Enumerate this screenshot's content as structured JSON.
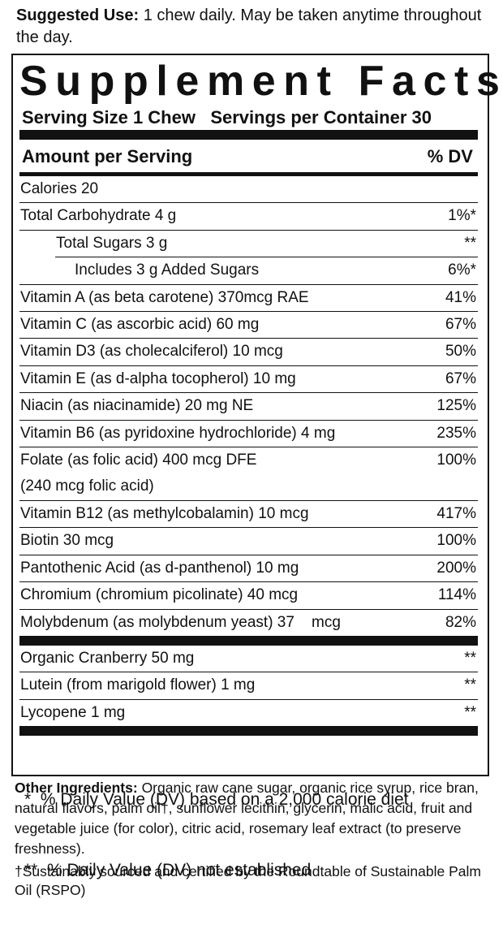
{
  "suggested_use": {
    "label": "Suggested Use:",
    "text": "1 chew daily. May be taken anytime throughout the day."
  },
  "panel": {
    "title": "Supplement Facts",
    "serving_size": "Serving Size 1 Chew",
    "servings_per_container": "Servings per Container 30",
    "header": {
      "amount": "Amount per Serving",
      "dv": "% DV"
    },
    "rows": [
      {
        "name": "Calories 20"
      },
      {
        "name": "Total Carbohydrate 4 g",
        "dv": "1%*"
      },
      {
        "name": "Total Sugars 3 g",
        "dv": "**"
      },
      {
        "name": "Includes 3 g Added Sugars",
        "dv": "6%*"
      },
      {
        "name": "Vitamin A (as beta carotene) 370mcg RAE",
        "dv": "41%"
      },
      {
        "name": "Vitamin C (as ascorbic acid) 60 mg",
        "dv": "67%"
      },
      {
        "name": "Vitamin D3 (as cholecalciferol) 10 mcg",
        "dv": "50%"
      },
      {
        "name": "Vitamin E (as d-alpha tocopherol) 10 mg",
        "dv": "67%"
      },
      {
        "name": "Niacin (as niacinamide) 20 mg NE",
        "dv": "125%"
      },
      {
        "name": "Vitamin B6 (as pyridoxine hydrochloride) 4 mg",
        "dv": "235%"
      },
      {
        "name": "Folate (as folic acid) 400 mcg DFE",
        "detail": "(240 mcg folic acid)",
        "dv": "100%"
      },
      {
        "name": "Vitamin B12 (as methylcobalamin) 10 mcg",
        "dv": "417%"
      },
      {
        "name": "Biotin 30 mcg",
        "dv": "100%"
      },
      {
        "name": "Pantothenic Acid (as d-panthenol) 10 mg",
        "dv": "200%"
      },
      {
        "name": "Chromium (chromium picolinate) 40 mcg",
        "dv": "114%"
      },
      {
        "name": "Molybdenum (as molybdenum yeast) 37    mcg",
        "dv": "82%"
      }
    ],
    "other_rows": [
      {
        "name": "Organic Cranberry 50 mg",
        "dv": "**"
      },
      {
        "name": "Lutein (from marigold flower) 1 mg",
        "dv": "**"
      },
      {
        "name": "Lycopene 1 mg",
        "dv": "**"
      }
    ],
    "footnotes": [
      "*  % Daily Value (DV) based on a 2,000 calorie diet",
      "**  % Daily Value (DV) not established"
    ]
  },
  "other_ingredients": {
    "label": "Other Ingredients:",
    "text": "Organic raw cane sugar, organic rice syrup, rice bran, natural flavors, palm oil†, sunflower lecithin, glycerin, malic acid, fruit and vegetable juice (for color), citric acid, rosemary leaf extract (to preserve freshness)."
  },
  "footnote": "†Sustainably sourced and certified by the Roundtable of Sustainable Palm Oil (RSPO)"
}
